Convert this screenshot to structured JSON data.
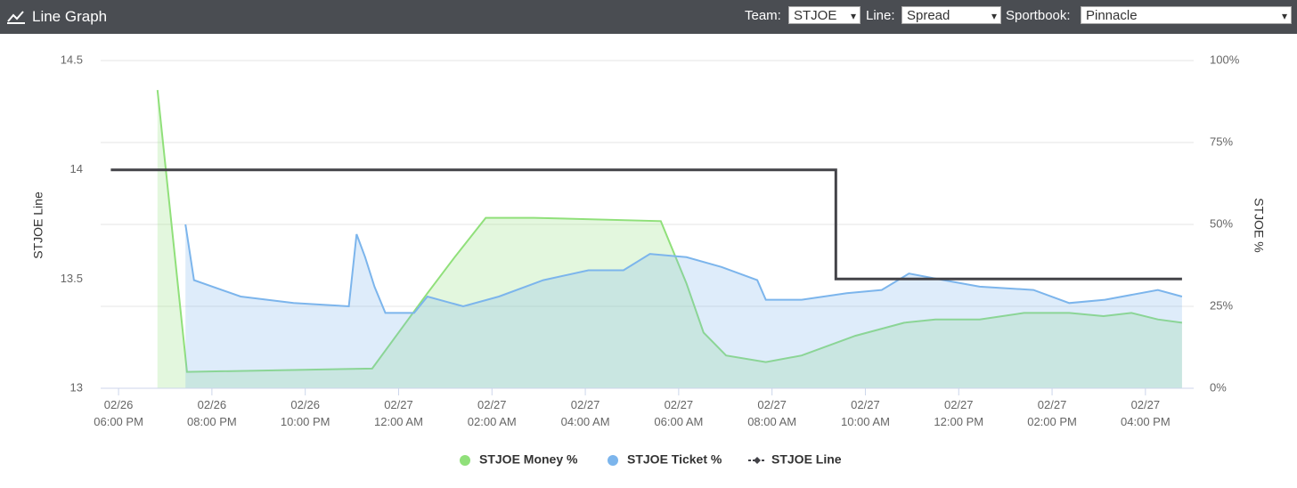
{
  "header": {
    "title": "Line Graph",
    "controls": [
      {
        "label": "Team:",
        "value": "STJOE"
      },
      {
        "label": "Line:",
        "value": "Spread"
      },
      {
        "label": "Sportbook:",
        "value": "Pinnacle"
      }
    ]
  },
  "chart_data": {
    "type": "line",
    "y_label": "STJOE Line",
    "y2_label": "STJOE %",
    "xlim": [
      "02/26 05:37 PM",
      "02/27 05:02 PM"
    ],
    "xticks": [
      "02/26 06:00 PM",
      "02/26 08:00 PM",
      "02/26 10:00 PM",
      "02/27 12:00 AM",
      "02/27 02:00 AM",
      "02/27 04:00 AM",
      "02/27 06:00 AM",
      "02/27 08:00 AM",
      "02/27 10:00 AM",
      "02/27 12:00 PM",
      "02/27 02:00 PM",
      "02/27 04:00 PM"
    ],
    "ylim": [
      13,
      14.5
    ],
    "yticks": [
      13,
      13.5,
      14,
      14.5
    ],
    "y2lim": [
      0,
      100
    ],
    "y2ticks": [
      {
        "value": 0,
        "label": "0%"
      },
      {
        "value": 25,
        "label": "25%"
      },
      {
        "value": 50,
        "label": "50%"
      },
      {
        "value": 75,
        "label": "75%"
      },
      {
        "value": 100,
        "label": "100%"
      }
    ],
    "grid": true,
    "series": [
      {
        "name": "STJOE Money %",
        "color": "#90e07a",
        "axis": "y2",
        "area": true,
        "x": [
          "02/26 06:50 PM",
          "02/26 07:28 PM",
          "02/26 11:26 PM",
          "02/27 12:03 AM",
          "02/27 12:37 AM",
          "02/27 01:12 AM",
          "02/27 01:52 AM",
          "02/27 02:54 AM",
          "02/27 05:37 AM",
          "02/27 06:10 AM",
          "02/27 06:32 AM",
          "02/27 07:01 AM",
          "02/27 07:52 AM",
          "02/27 08:38 AM",
          "02/27 09:47 AM",
          "02/27 10:50 AM",
          "02/27 11:30 AM",
          "02/27 12:27 PM",
          "02/27 01:24 PM",
          "02/27 02:22 PM",
          "02/27 03:06 PM",
          "02/27 03:42 PM",
          "02/27 04:16 PM",
          "02/27 04:47 PM"
        ],
        "values": [
          91,
          5,
          6,
          18,
          29,
          40,
          52,
          52,
          51,
          32,
          17,
          10,
          8,
          10,
          16,
          20,
          21,
          21,
          23,
          23,
          22,
          23,
          21,
          20
        ]
      },
      {
        "name": "STJOE Ticket %",
        "color": "#7cb5ec",
        "axis": "y2",
        "area": true,
        "x": [
          "02/26 07:26 PM",
          "02/26 07:37 PM",
          "02/26 08:37 PM",
          "02/26 09:45 PM",
          "02/26 10:56 PM",
          "02/26 11:06 PM",
          "02/26 11:17 PM",
          "02/26 11:29 PM",
          "02/26 11:43 PM",
          "02/27 12:20 AM",
          "02/27 12:37 AM",
          "02/27 01:23 AM",
          "02/27 02:09 AM",
          "02/27 03:06 AM",
          "02/27 04:04 AM",
          "02/27 04:49 AM",
          "02/27 05:23 AM",
          "02/27 06:10 AM",
          "02/27 06:55 AM",
          "02/27 07:41 AM",
          "02/27 07:52 AM",
          "02/27 08:38 AM",
          "02/27 09:36 AM",
          "02/27 10:21 AM",
          "02/27 10:56 AM",
          "02/27 11:41 AM",
          "02/27 12:27 PM",
          "02/27 01:36 PM",
          "02/27 02:22 PM",
          "02/27 03:08 PM",
          "02/27 04:16 PM",
          "02/27 04:47 PM"
        ],
        "values": [
          50,
          33,
          28,
          26,
          25,
          47,
          40,
          31,
          23,
          23,
          28,
          25,
          28,
          33,
          36,
          36,
          41,
          40,
          37,
          33,
          27,
          27,
          29,
          30,
          35,
          33,
          31,
          30,
          26,
          27,
          30,
          28
        ]
      },
      {
        "name": "STJOE Line",
        "color": "#434348",
        "axis": "y",
        "area": false,
        "x": [
          "02/26 05:50 PM",
          "02/27 09:22 AM",
          "02/27 09:22 AM",
          "02/27 04:47 PM"
        ],
        "values": [
          14,
          14,
          13.5,
          13.5
        ]
      }
    ]
  }
}
